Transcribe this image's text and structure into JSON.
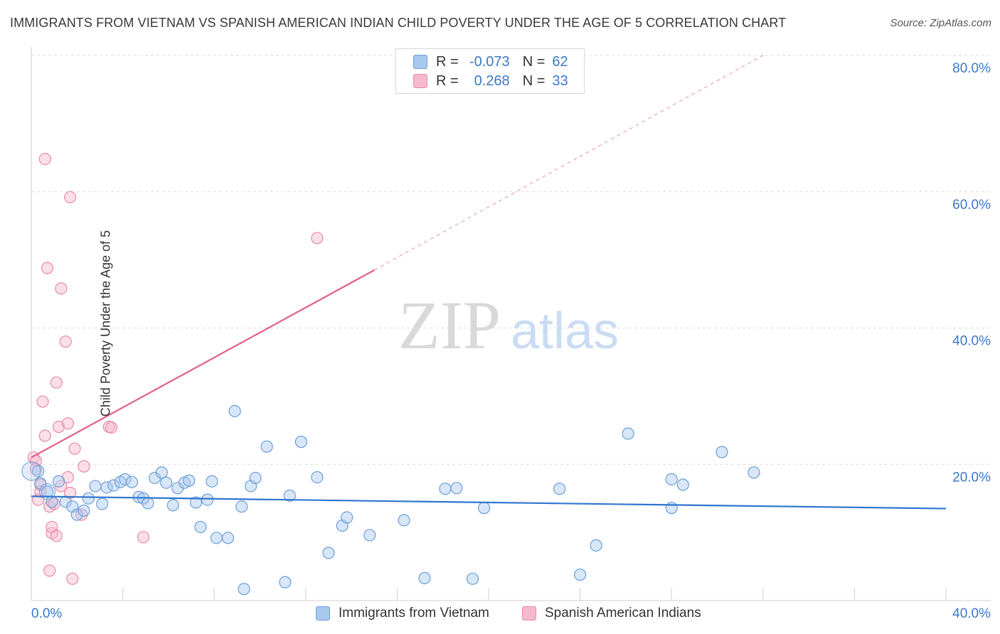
{
  "title": "IMMIGRANTS FROM VIETNAM VS SPANISH AMERICAN INDIAN CHILD POVERTY UNDER THE AGE OF 5 CORRELATION CHART",
  "source": "Source: ZipAtlas.com",
  "watermark": {
    "zip": "ZIP",
    "atlas": "atlas"
  },
  "legend": {
    "rows": [
      {
        "r_label": "R =",
        "r_value": "-0.073",
        "n_label": "N =",
        "n_value": "62"
      },
      {
        "r_label": "R =",
        "r_value": "0.268",
        "n_label": "N =",
        "n_value": "33"
      }
    ]
  },
  "colors": {
    "blue_fill": "#a9c8ef",
    "blue_stroke": "#6a9fd8",
    "blue_line": "#2f75cf",
    "pink_fill": "#f6b9cd",
    "pink_stroke": "#e889a8",
    "pink_line": "#e0608a",
    "axis_text": "#3b78c8",
    "grid": "#dcdcdc"
  },
  "chart_data": {
    "type": "scatter",
    "title": "IMMIGRANTS FROM VIETNAM VS SPANISH AMERICAN INDIAN CHILD POVERTY UNDER THE AGE OF 5 CORRELATION CHART",
    "xlabel": "",
    "ylabel": "Child Poverty Under the Age of 5",
    "xlim": [
      0,
      40
    ],
    "ylim": [
      0,
      80
    ],
    "x_tick_labels": [
      "0.0%",
      "40.0%"
    ],
    "y_tick_labels": [
      "20.0%",
      "40.0%",
      "60.0%",
      "80.0%"
    ],
    "y_ticks": [
      20,
      40,
      60,
      80
    ],
    "grid": true,
    "legend_position": "top-center",
    "series": [
      {
        "name": "Immigrants from Vietnam",
        "color": "blue",
        "r": -0.073,
        "n": 62,
        "trend": {
          "x": [
            0,
            40
          ],
          "y": [
            15.3,
            13.5
          ]
        },
        "points": [
          [
            0.3,
            19.0
          ],
          [
            0.4,
            17.2
          ],
          [
            0.7,
            16.0
          ],
          [
            0.9,
            14.5
          ],
          [
            1.2,
            17.5
          ],
          [
            1.5,
            14.5
          ],
          [
            1.8,
            13.8
          ],
          [
            2.0,
            12.6
          ],
          [
            2.3,
            13.2
          ],
          [
            2.5,
            15.0
          ],
          [
            2.8,
            16.8
          ],
          [
            3.1,
            14.2
          ],
          [
            3.3,
            16.6
          ],
          [
            3.6,
            16.9
          ],
          [
            3.9,
            17.4
          ],
          [
            4.1,
            17.8
          ],
          [
            4.4,
            17.4
          ],
          [
            4.7,
            15.2
          ],
          [
            4.9,
            15.0
          ],
          [
            5.1,
            14.3
          ],
          [
            5.4,
            18.0
          ],
          [
            5.7,
            18.8
          ],
          [
            5.9,
            17.3
          ],
          [
            6.2,
            14.0
          ],
          [
            6.4,
            16.5
          ],
          [
            6.7,
            17.3
          ],
          [
            6.9,
            17.6
          ],
          [
            7.2,
            14.4
          ],
          [
            7.4,
            10.8
          ],
          [
            7.7,
            14.8
          ],
          [
            7.9,
            17.5
          ],
          [
            8.1,
            9.2
          ],
          [
            8.6,
            9.2
          ],
          [
            8.9,
            27.8
          ],
          [
            9.2,
            13.8
          ],
          [
            9.3,
            1.7
          ],
          [
            9.6,
            16.8
          ],
          [
            9.8,
            18.0
          ],
          [
            10.3,
            22.6
          ],
          [
            11.1,
            2.7
          ],
          [
            11.3,
            15.4
          ],
          [
            11.8,
            23.3
          ],
          [
            12.5,
            18.1
          ],
          [
            13.0,
            7.0
          ],
          [
            13.6,
            11.0
          ],
          [
            13.8,
            12.2
          ],
          [
            14.8,
            9.6
          ],
          [
            16.3,
            11.8
          ],
          [
            17.2,
            3.3
          ],
          [
            18.1,
            16.4
          ],
          [
            18.6,
            16.5
          ],
          [
            19.3,
            3.2
          ],
          [
            19.8,
            13.6
          ],
          [
            23.1,
            16.4
          ],
          [
            24.0,
            3.8
          ],
          [
            24.7,
            8.1
          ],
          [
            26.1,
            24.5
          ],
          [
            28.0,
            17.8
          ],
          [
            28.0,
            13.6
          ],
          [
            28.5,
            17.0
          ],
          [
            30.2,
            21.8
          ],
          [
            31.6,
            18.8
          ]
        ]
      },
      {
        "name": "Spanish American Indians",
        "color": "pink",
        "r": 0.268,
        "n": 33,
        "trend": {
          "x": [
            0,
            15
          ],
          "y": [
            21.0,
            48.5
          ]
        },
        "trend_extension": {
          "x": [
            15,
            32
          ],
          "y": [
            48.5,
            80.0
          ]
        },
        "points": [
          [
            0.1,
            21.0
          ],
          [
            0.2,
            20.5
          ],
          [
            0.2,
            19.3
          ],
          [
            0.3,
            14.8
          ],
          [
            0.4,
            16.0
          ],
          [
            0.4,
            17.0
          ],
          [
            0.5,
            29.2
          ],
          [
            0.6,
            24.2
          ],
          [
            0.6,
            64.8
          ],
          [
            0.7,
            48.8
          ],
          [
            0.8,
            4.4
          ],
          [
            0.8,
            13.8
          ],
          [
            0.9,
            9.9
          ],
          [
            0.9,
            10.8
          ],
          [
            1.0,
            14.2
          ],
          [
            1.1,
            32.0
          ],
          [
            1.1,
            9.5
          ],
          [
            1.2,
            25.5
          ],
          [
            1.3,
            16.8
          ],
          [
            1.3,
            45.8
          ],
          [
            1.5,
            38.0
          ],
          [
            1.6,
            26.0
          ],
          [
            1.6,
            18.1
          ],
          [
            1.7,
            59.2
          ],
          [
            1.7,
            15.8
          ],
          [
            1.8,
            3.2
          ],
          [
            1.9,
            22.3
          ],
          [
            2.2,
            12.6
          ],
          [
            2.3,
            19.7
          ],
          [
            3.4,
            25.5
          ],
          [
            3.5,
            25.4
          ],
          [
            4.9,
            9.3
          ],
          [
            12.5,
            53.2
          ]
        ]
      }
    ]
  },
  "bottom_legend": [
    "Immigrants from Vietnam",
    "Spanish American Indians"
  ]
}
